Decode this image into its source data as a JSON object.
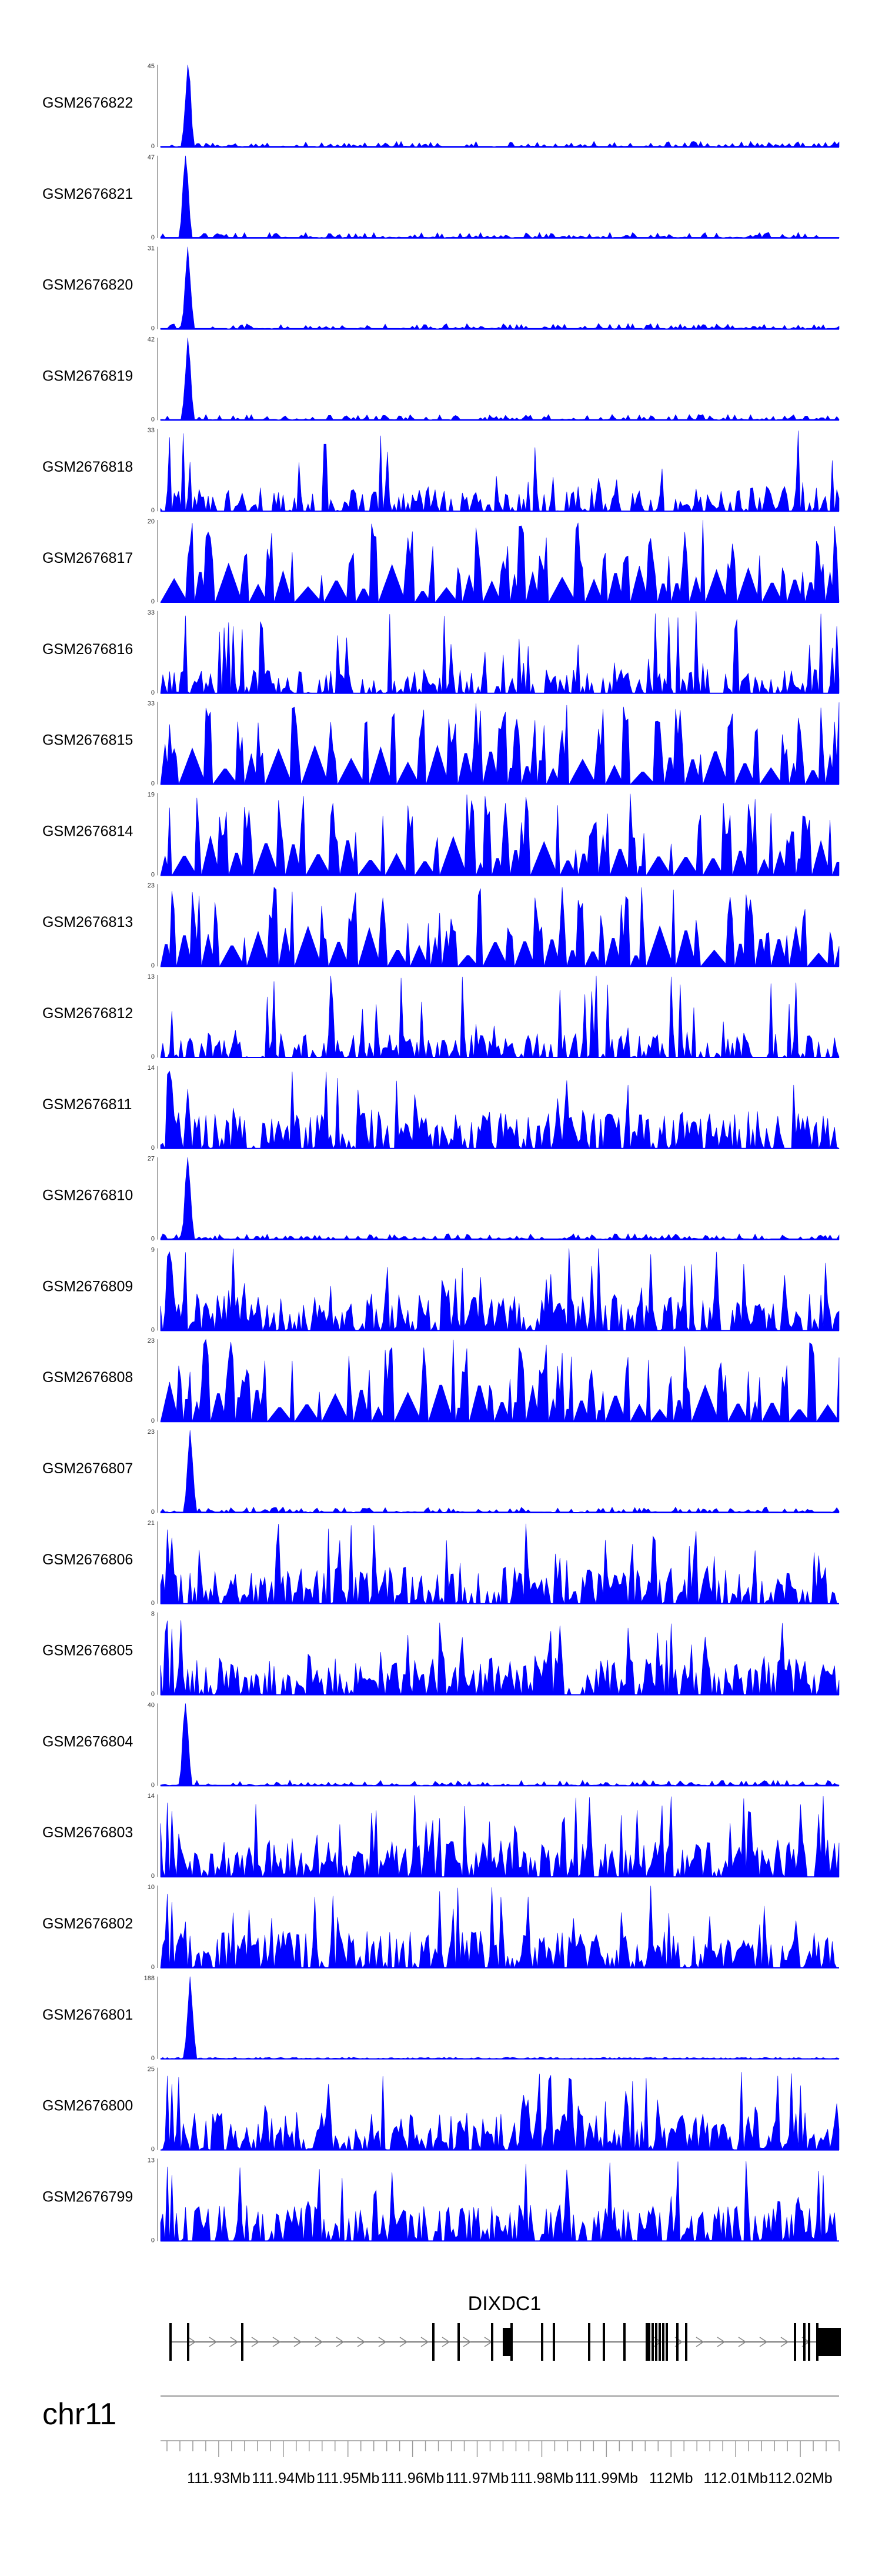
{
  "chart_data": {
    "type": "area",
    "chromosome": "chr11",
    "gene": "DIXDC1",
    "x_range": [
      111.921,
      112.026
    ],
    "x_unit": "Mb",
    "x_ticks": [
      {
        "value": 111.93,
        "label": "111.93Mb"
      },
      {
        "value": 111.94,
        "label": "111.94Mb"
      },
      {
        "value": 111.95,
        "label": "111.95Mb"
      },
      {
        "value": 111.96,
        "label": "111.96Mb"
      },
      {
        "value": 111.97,
        "label": "111.97Mb"
      },
      {
        "value": 111.98,
        "label": "111.98Mb"
      },
      {
        "value": 111.99,
        "label": "111.99Mb"
      },
      {
        "value": 112.0,
        "label": "112Mb"
      },
      {
        "value": 112.01,
        "label": "112.01Mb"
      },
      {
        "value": 112.02,
        "label": "112.02Mb"
      }
    ],
    "fill_color": "#0000ff",
    "tracks": [
      {
        "name": "GSM2676822",
        "ymax": "45",
        "ymin": "0",
        "profile": "promoter"
      },
      {
        "name": "GSM2676821",
        "ymax": "47",
        "ymin": "0",
        "profile": "promoter"
      },
      {
        "name": "GSM2676820",
        "ymax": "31",
        "ymin": "0",
        "profile": "promoter"
      },
      {
        "name": "GSM2676819",
        "ymax": "42",
        "ymin": "0",
        "profile": "promoter"
      },
      {
        "name": "GSM2676818",
        "ymax": "33",
        "ymin": "0",
        "profile": "broad"
      },
      {
        "name": "GSM2676817",
        "ymax": "20",
        "ymin": "0",
        "profile": "sparse"
      },
      {
        "name": "GSM2676816",
        "ymax": "33",
        "ymin": "0",
        "profile": "broad"
      },
      {
        "name": "GSM2676815",
        "ymax": "33",
        "ymin": "0",
        "profile": "sparse"
      },
      {
        "name": "GSM2676814",
        "ymax": "19",
        "ymin": "0",
        "profile": "sparse"
      },
      {
        "name": "GSM2676813",
        "ymax": "23",
        "ymin": "0",
        "profile": "sparse"
      },
      {
        "name": "GSM2676812",
        "ymax": "13",
        "ymin": "0",
        "profile": "broad"
      },
      {
        "name": "GSM2676811",
        "ymax": "14",
        "ymin": "0",
        "profile": "dense"
      },
      {
        "name": "GSM2676810",
        "ymax": "27",
        "ymin": "0",
        "profile": "promoter"
      },
      {
        "name": "GSM2676809",
        "ymax": "9",
        "ymin": "0",
        "profile": "dense"
      },
      {
        "name": "GSM2676808",
        "ymax": "23",
        "ymin": "0",
        "profile": "sparse"
      },
      {
        "name": "GSM2676807",
        "ymax": "23",
        "ymin": "0",
        "profile": "promoter"
      },
      {
        "name": "GSM2676806",
        "ymax": "21",
        "ymin": "0",
        "profile": "dense"
      },
      {
        "name": "GSM2676805",
        "ymax": "8",
        "ymin": "0",
        "profile": "dense"
      },
      {
        "name": "GSM2676804",
        "ymax": "40",
        "ymin": "0",
        "profile": "promoter"
      },
      {
        "name": "GSM2676803",
        "ymax": "14",
        "ymin": "0",
        "profile": "dense"
      },
      {
        "name": "GSM2676802",
        "ymax": "10",
        "ymin": "0",
        "profile": "dense"
      },
      {
        "name": "GSM2676801",
        "ymax": "188",
        "ymin": "0",
        "profile": "spike"
      },
      {
        "name": "GSM2676800",
        "ymax": "25",
        "ymin": "0",
        "profile": "dense"
      },
      {
        "name": "GSM2676799",
        "ymax": "13",
        "ymin": "0",
        "profile": "dense"
      }
    ]
  }
}
